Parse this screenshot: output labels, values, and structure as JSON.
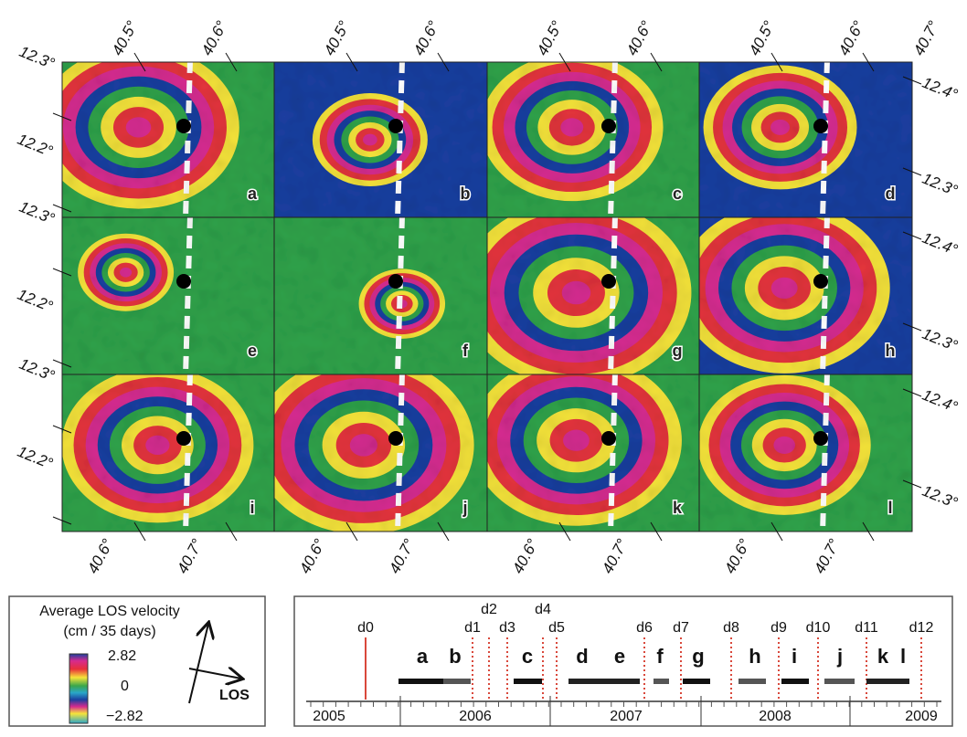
{
  "map_axes": {
    "top": [
      "40.5°",
      "40.6°",
      "40.7°"
    ],
    "left": [
      "12.3°",
      "12.2°"
    ],
    "right": [
      "12.4°",
      "12.3°"
    ],
    "bottom": [
      "40.6°",
      "40.7°"
    ]
  },
  "panels": [
    "a",
    "b",
    "c",
    "d",
    "e",
    "f",
    "g",
    "h",
    "i",
    "j",
    "k",
    "l"
  ],
  "legend": {
    "title": "Average LOS velocity",
    "units": "(cm / 35 days)",
    "max": "2.82",
    "mid": "0",
    "min": "−2.82",
    "los": "LOS"
  },
  "timeline": {
    "years": [
      "2005",
      "2006",
      "2007",
      "2008",
      "2009"
    ],
    "dates": [
      "d0",
      "d1",
      "d2",
      "d3",
      "d4",
      "d5",
      "d6",
      "d7",
      "d8",
      "d9",
      "d10",
      "d11",
      "d12"
    ],
    "intervals": [
      "a",
      "b",
      "c",
      "d",
      "e",
      "f",
      "g",
      "h",
      "i",
      "j",
      "k",
      "l"
    ]
  }
}
